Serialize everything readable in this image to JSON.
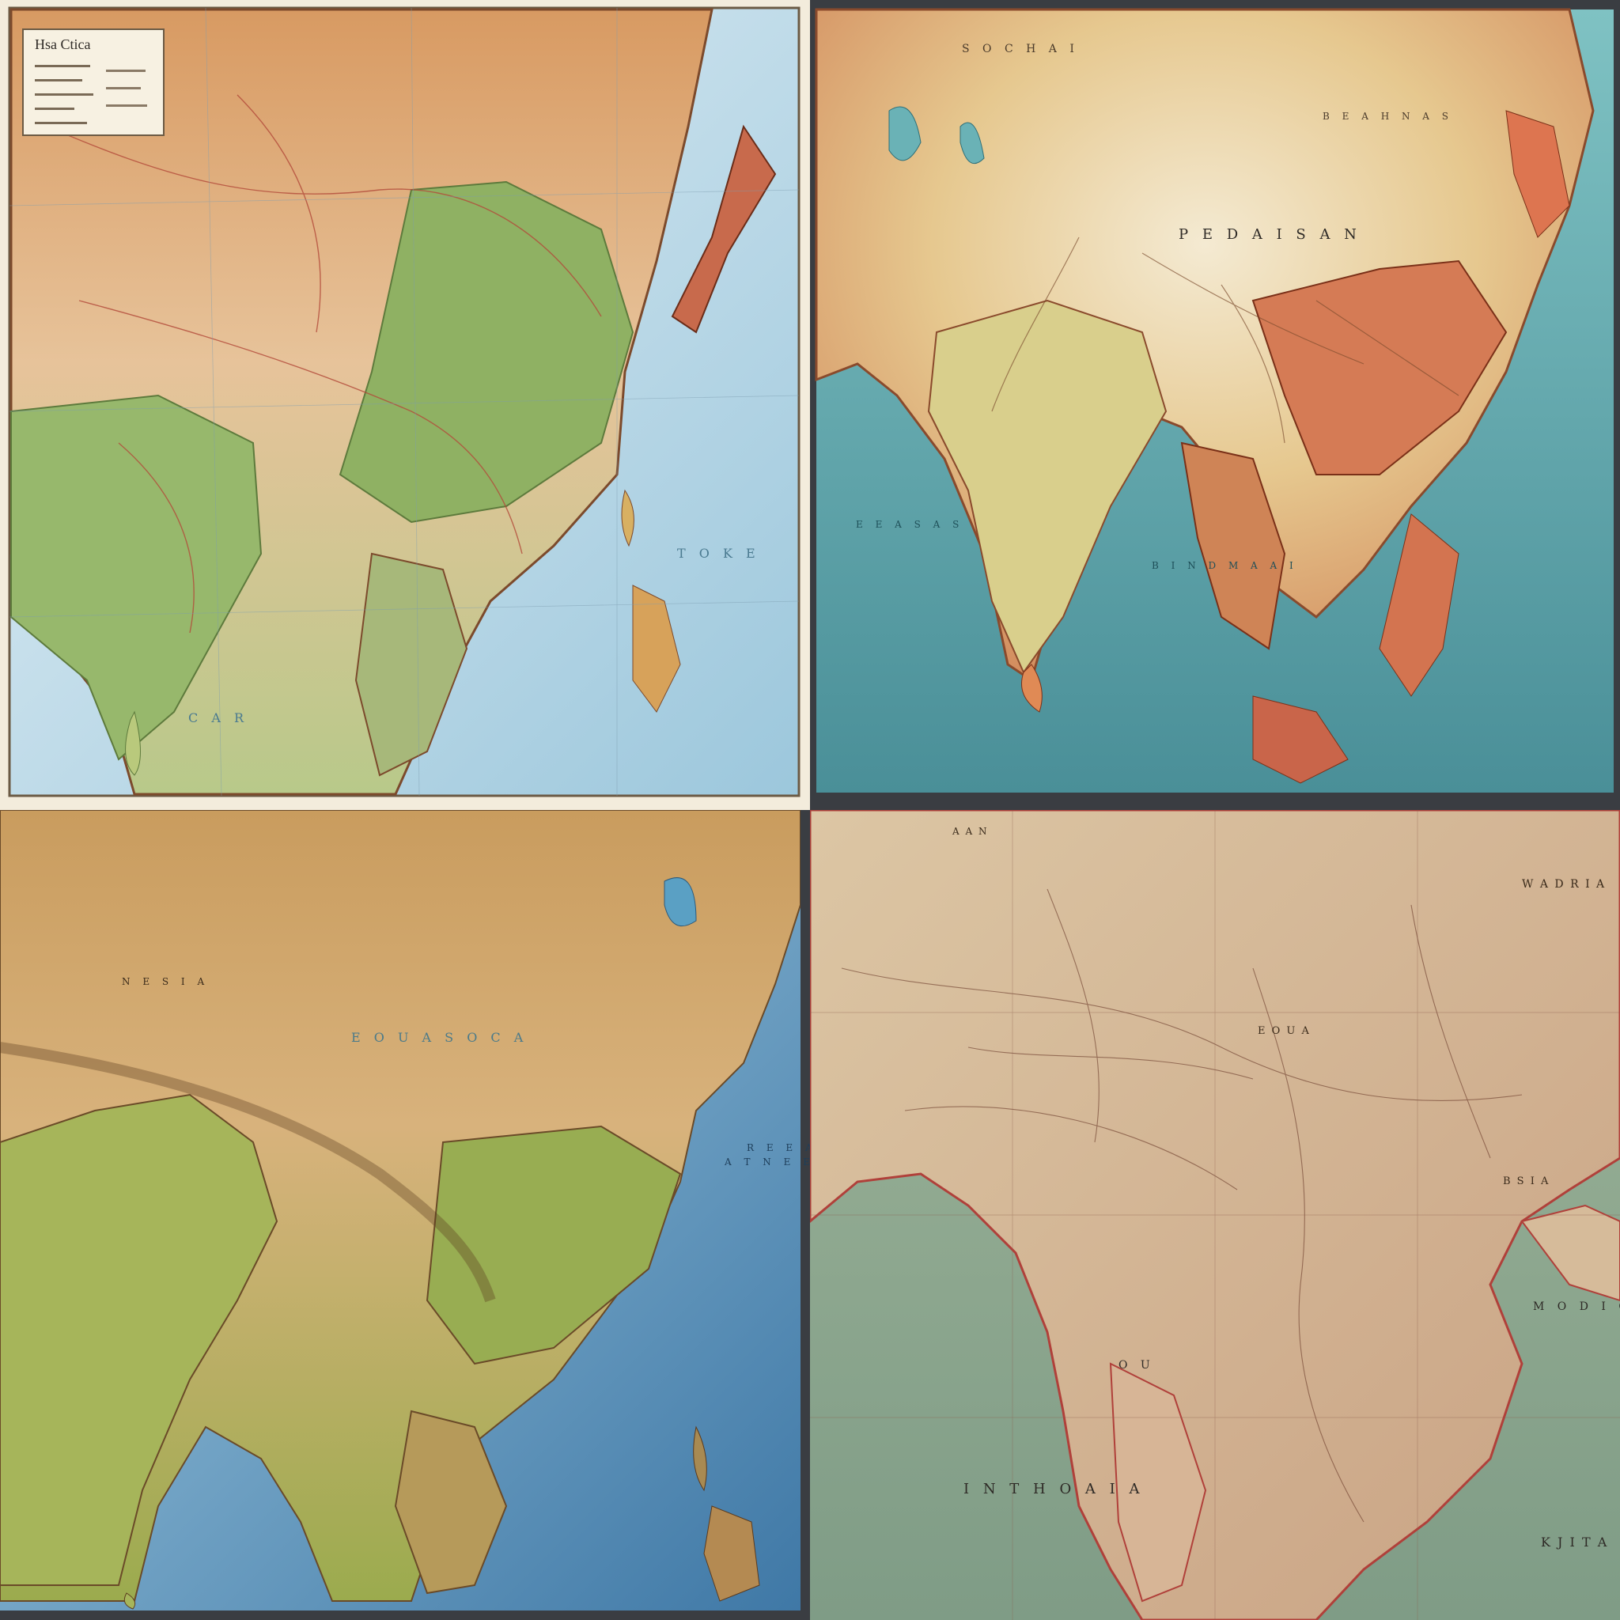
{
  "panels": [
    {
      "id": "map-top-left",
      "legend_title": "Hsa Ctica",
      "labels": [
        "T O K E",
        "C A R"
      ]
    },
    {
      "id": "map-top-right",
      "labels": [
        "S O C H A I",
        "P E D A I S A N",
        "B E A H N A S",
        "E E A S A S",
        "B I N D M A A I"
      ]
    },
    {
      "id": "map-bottom-left",
      "labels": [
        "E O U A  S O C A",
        "N E S I A",
        "R E E A",
        "A T N E E D A"
      ]
    },
    {
      "id": "map-bottom-right",
      "labels": [
        "I N T H O A I A",
        "W A D R I A",
        "E O U A",
        "B S I A",
        "K J I T A",
        "M O D I O",
        "O U",
        "A A N"
      ]
    }
  ],
  "colors": {
    "ocean_blue": "#a9cfe0",
    "ocean_teal": "#5fa3a6",
    "land_green": "#8fb163",
    "land_tan": "#d8b27c",
    "land_red": "#c86a4c",
    "sepia": "#c9ad86"
  }
}
